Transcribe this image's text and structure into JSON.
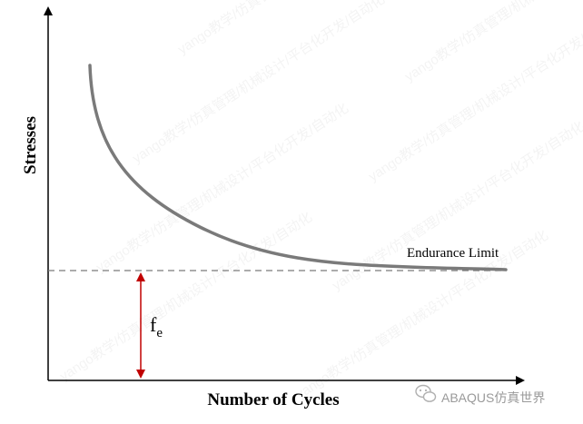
{
  "diagram": {
    "y_axis_label": "Stresses",
    "x_axis_label": "Number of Cycles",
    "endurance_label": "Endurance Limit",
    "fe_symbol": "f",
    "fe_subscript": "e"
  },
  "watermark": {
    "text": "ABAQUS仿真世界",
    "pattern_text": "yango教学/仿真管理/机械设计/平台化开发/自动化"
  },
  "colors": {
    "curve": "#7a7a7a",
    "limit_line": "#7a7a7a",
    "axis": "#000000",
    "arrow": "#c00000"
  }
}
